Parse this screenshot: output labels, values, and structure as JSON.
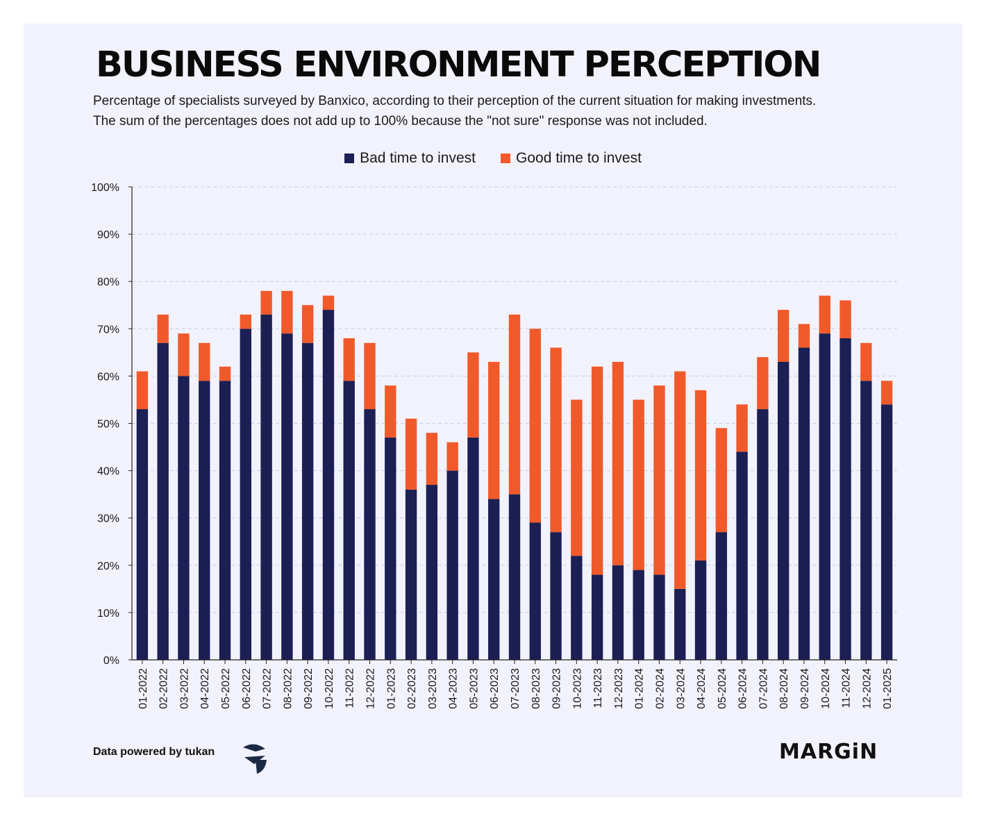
{
  "title": "BUSINESS ENVIRONMENT PERCEPTION",
  "subtitle_line1": "Percentage of specialists surveyed by Banxico, according to their perception of the current situation for making investments.",
  "subtitle_line2": "The sum of the percentages does not add up to 100% because the \"not sure\" response was not included.",
  "footer": {
    "source": "Data powered by tukan",
    "brand": "MARGiN"
  },
  "colors": {
    "bad": "#1b1f54",
    "good": "#f05a2a",
    "grid": "#c9c9e8",
    "background": "#f2f2fc"
  },
  "chart_data": {
    "type": "bar",
    "stacked": true,
    "ylim": [
      0,
      100
    ],
    "y_ticks": [
      "0%",
      "10%",
      "20%",
      "30%",
      "40%",
      "50%",
      "60%",
      "70%",
      "80%",
      "90%",
      "100%"
    ],
    "grid": true,
    "legend_position": "top-center",
    "categories": [
      "01-2022",
      "02-2022",
      "03-2022",
      "04-2022",
      "05-2022",
      "06-2022",
      "07-2022",
      "08-2022",
      "09-2022",
      "10-2022",
      "11-2022",
      "12-2022",
      "01-2023",
      "02-2023",
      "03-2023",
      "04-2023",
      "05-2023",
      "06-2023",
      "07-2023",
      "08-2023",
      "09-2023",
      "10-2023",
      "11-2023",
      "12-2023",
      "01-2024",
      "02-2024",
      "03-2024",
      "04-2024",
      "05-2024",
      "06-2024",
      "07-2024",
      "08-2024",
      "09-2024",
      "10-2024",
      "11-2024",
      "12-2024",
      "01-2025"
    ],
    "series": [
      {
        "name": "Bad time to invest",
        "values": [
          53,
          67,
          60,
          59,
          59,
          70,
          73,
          69,
          67,
          74,
          59,
          53,
          47,
          36,
          37,
          40,
          47,
          34,
          35,
          29,
          27,
          22,
          18,
          20,
          19,
          18,
          15,
          21,
          27,
          44,
          53,
          63,
          66,
          69,
          68,
          59,
          54
        ]
      },
      {
        "name": "Good time to invest",
        "values": [
          8,
          6,
          9,
          8,
          3,
          3,
          5,
          9,
          8,
          3,
          9,
          14,
          11,
          15,
          11,
          6,
          18,
          29,
          38,
          41,
          39,
          33,
          44,
          43,
          36,
          40,
          46,
          36,
          22,
          10,
          11,
          11,
          5,
          8,
          8,
          8,
          5
        ]
      }
    ]
  }
}
